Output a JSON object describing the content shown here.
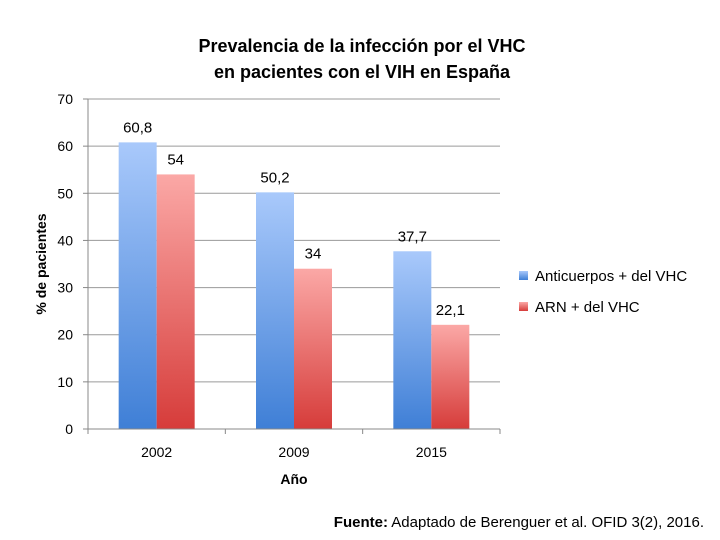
{
  "chart_data": {
    "type": "bar",
    "title_lines": [
      "Prevalencia de la infección por el VHC",
      "en pacientes con el VIH en España"
    ],
    "xlabel": "Año",
    "ylabel": "% de pacientes",
    "categories": [
      "2002",
      "2009",
      "2015"
    ],
    "ylim": [
      0,
      70
    ],
    "yticks": [
      0,
      10,
      20,
      30,
      40,
      50,
      60,
      70
    ],
    "ytick_labels": [
      "0",
      "10",
      "20",
      "30",
      "40",
      "50",
      "60",
      "70"
    ],
    "grid": true,
    "legend_position": "right",
    "series": [
      {
        "name": "Anticuerpos + del VHC",
        "values": [
          60.8,
          50.2,
          37.7
        ],
        "labels": [
          "60,8",
          "50,2",
          "37,7"
        ],
        "color": "#5b8fd8"
      },
      {
        "name": "ARN + del VHC",
        "values": [
          54,
          34,
          22.1
        ],
        "labels": [
          "54",
          "34",
          "22,1"
        ],
        "color": "#d9504e"
      }
    ]
  },
  "source": {
    "label": "Fuente:",
    "text": " Adaptado de Berenguer et al. OFID 3(2), 2016."
  }
}
